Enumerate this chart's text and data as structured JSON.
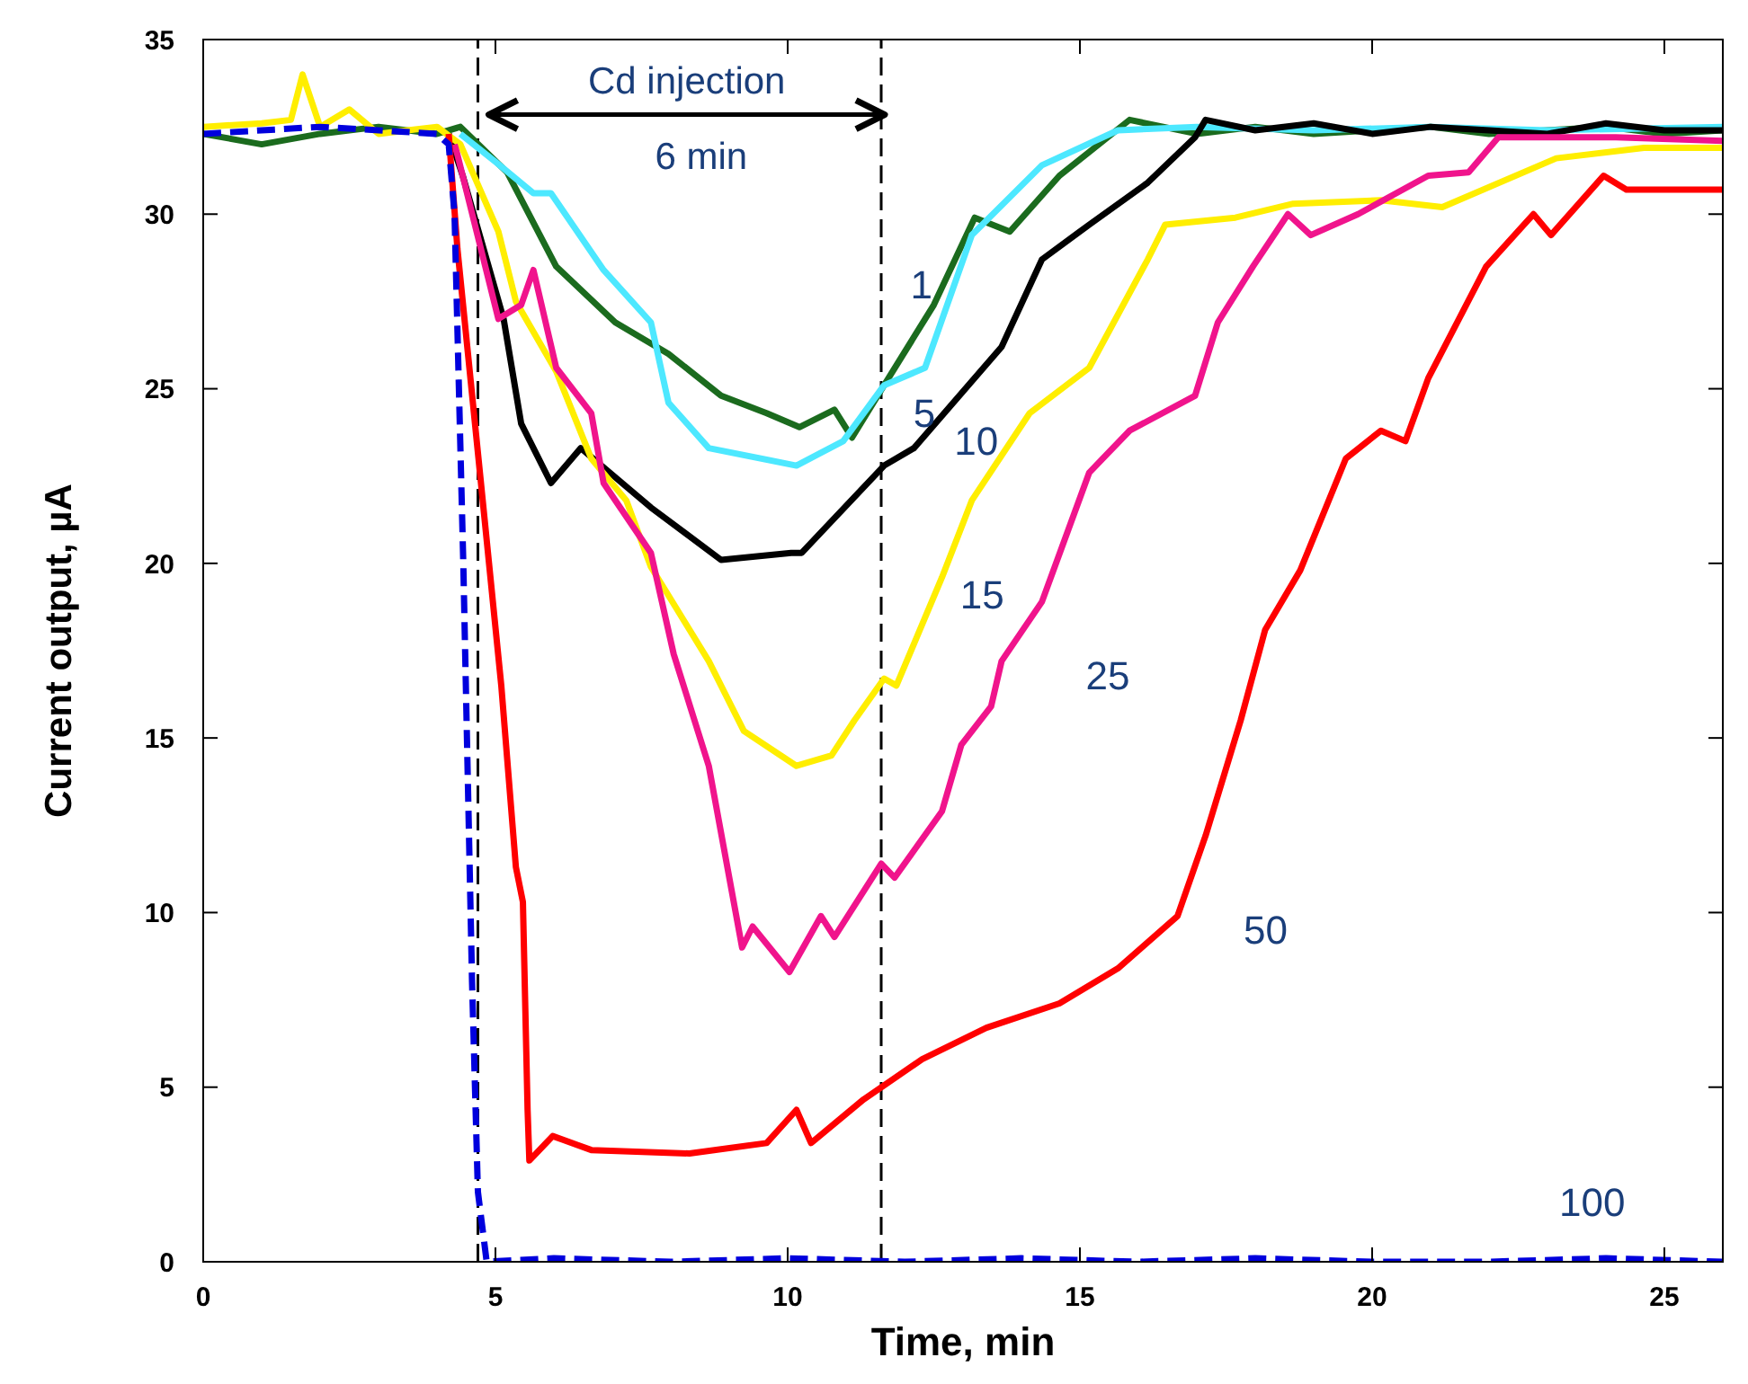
{
  "chart_data": {
    "type": "line",
    "xlabel": "Time, min",
    "ylabel": "Current output, µA",
    "xlim": [
      0,
      26
    ],
    "xticks": [
      0,
      5,
      10,
      15,
      20,
      25
    ],
    "ylim": [
      0,
      35
    ],
    "yticks": [
      0,
      5,
      10,
      15,
      20,
      25,
      30,
      35
    ],
    "marker": "none",
    "ref_lines": [
      {
        "axis": "x",
        "value": 4.7,
        "color": "#000000",
        "line_style": "dashed"
      },
      {
        "axis": "x",
        "value": 11.6,
        "color": "#000000",
        "line_style": "dashed"
      }
    ],
    "annotations": [
      "Cd injection",
      "6 min"
    ],
    "series": [
      {
        "name": "1",
        "color": "#1b6b1e",
        "line_style": "solid",
        "x": [
          0,
          1,
          2,
          3,
          4,
          4.4,
          5.2,
          6.04,
          7.05,
          7.96,
          8.86,
          9.64,
          10.2,
          10.8,
          11.1,
          11.65,
          12.5,
          13.2,
          13.8,
          14.65,
          15.85,
          17,
          18,
          19,
          20,
          21,
          22,
          23,
          24,
          25,
          26
        ],
        "values": [
          32.3,
          32.0,
          32.3,
          32.5,
          32.3,
          32.5,
          31.2,
          28.5,
          26.9,
          26.0,
          24.8,
          24.3,
          23.9,
          24.4,
          23.6,
          25.1,
          27.4,
          29.9,
          29.5,
          31.1,
          32.7,
          32.3,
          32.5,
          32.3,
          32.4,
          32.5,
          32.3,
          32.4,
          32.5,
          32.3,
          32.4
        ]
      },
      {
        "name": "5",
        "color": "#4de8ff",
        "line_style": "solid",
        "x": [
          4.4,
          5.0,
          5.65,
          5.95,
          6.85,
          7.66,
          7.96,
          8.65,
          10.15,
          10.95,
          11.65,
          12.35,
          13.15,
          14.35,
          15.65,
          17,
          19,
          21,
          23,
          26
        ],
        "values": [
          32.3,
          31.5,
          30.6,
          30.6,
          28.4,
          26.9,
          24.6,
          23.3,
          22.8,
          23.5,
          25.1,
          25.6,
          29.4,
          31.4,
          32.4,
          32.5,
          32.4,
          32.5,
          32.4,
          32.5
        ]
      },
      {
        "name": "10",
        "color": "#000000",
        "line_style": "solid",
        "x": [
          4.2,
          4.44,
          5.14,
          5.44,
          5.95,
          6.46,
          7.66,
          8.86,
          10.06,
          10.24,
          11.65,
          12.16,
          13.66,
          14.35,
          15.16,
          16.16,
          16.97,
          17.15,
          18,
          19,
          20,
          21,
          22,
          23,
          24,
          25,
          26
        ],
        "values": [
          32.3,
          31.1,
          27.0,
          24.0,
          22.3,
          23.3,
          21.6,
          20.1,
          20.3,
          20.3,
          22.8,
          23.3,
          26.2,
          28.7,
          29.7,
          30.9,
          32.2,
          32.7,
          32.4,
          32.6,
          32.3,
          32.5,
          32.4,
          32.3,
          32.6,
          32.4,
          32.4
        ]
      },
      {
        "name": "15",
        "color": "#ffee00",
        "line_style": "solid",
        "x": [
          0,
          1,
          1.5,
          1.7,
          2,
          2.5,
          3,
          3.5,
          4,
          4.4,
          5.05,
          5.35,
          6.04,
          6.64,
          7.24,
          7.66,
          8.65,
          9.25,
          10.15,
          10.75,
          11.14,
          11.65,
          11.86,
          12.64,
          13.15,
          14.14,
          15.16,
          16.16,
          16.46,
          17.66,
          18.65,
          20.15,
          21.2,
          23.15,
          24.65,
          26
        ],
        "values": [
          32.5,
          32.6,
          32.7,
          34.0,
          32.5,
          33.0,
          32.3,
          32.4,
          32.5,
          32.0,
          29.5,
          27.5,
          25.5,
          23.0,
          21.8,
          19.9,
          17.2,
          15.2,
          14.2,
          14.5,
          15.5,
          16.7,
          16.5,
          19.6,
          21.8,
          24.3,
          25.6,
          28.7,
          29.7,
          29.9,
          30.3,
          30.4,
          30.2,
          31.6,
          31.9,
          31.9
        ]
      },
      {
        "name": "25",
        "color": "#f0148c",
        "line_style": "solid",
        "x": [
          4.3,
          4.35,
          5.05,
          5.44,
          5.65,
          6.04,
          6.64,
          6.85,
          7.66,
          8.05,
          8.65,
          9.22,
          9.4,
          10.03,
          10.57,
          10.8,
          11.6,
          11.83,
          12.64,
          12.97,
          13.48,
          13.66,
          14.35,
          15.16,
          15.85,
          16.97,
          17.36,
          17.96,
          18.56,
          18.95,
          19.76,
          20.96,
          21.65,
          22.16,
          24.17,
          26
        ],
        "values": [
          32.0,
          31.7,
          27.0,
          27.4,
          28.4,
          25.6,
          24.3,
          22.3,
          20.3,
          17.4,
          14.2,
          9.0,
          9.6,
          8.3,
          9.9,
          9.3,
          11.4,
          11.0,
          12.9,
          14.8,
          15.9,
          17.2,
          18.9,
          22.6,
          23.8,
          24.8,
          26.9,
          28.5,
          30.0,
          29.4,
          30.0,
          31.1,
          31.2,
          32.2,
          32.2,
          32.1
        ]
      },
      {
        "name": "50",
        "color": "#ff0000",
        "line_style": "solid",
        "x": [
          4.2,
          4.35,
          4.74,
          5.1,
          5.35,
          5.47,
          5.55,
          5.58,
          5.98,
          6.64,
          8.32,
          9.64,
          10.15,
          10.4,
          11.3,
          12.3,
          13.4,
          14.65,
          15.65,
          16.67,
          17.15,
          17.75,
          18.17,
          18.77,
          19.55,
          20.15,
          20.57,
          20.96,
          21.95,
          22.76,
          23.06,
          23.96,
          24.35,
          26
        ],
        "values": [
          32.3,
          29.0,
          22.5,
          16.5,
          11.3,
          10.3,
          4.35,
          2.9,
          3.6,
          3.2,
          3.1,
          3.4,
          4.35,
          3.4,
          4.65,
          5.8,
          6.7,
          7.4,
          8.4,
          9.9,
          12.2,
          15.5,
          18.1,
          19.8,
          23.0,
          23.8,
          23.5,
          25.3,
          28.5,
          30.0,
          29.4,
          31.1,
          30.7,
          30.7
        ]
      },
      {
        "name": "100",
        "color": "#0000dd",
        "line_style": "dashed",
        "x": [
          0,
          1,
          2,
          3,
          4,
          4.2,
          4.3,
          4.45,
          4.6,
          4.7,
          4.85,
          6,
          8,
          10,
          12,
          14,
          16,
          18,
          20,
          22,
          24,
          26
        ],
        "values": [
          32.3,
          32.4,
          32.5,
          32.4,
          32.3,
          32.0,
          30,
          20,
          8,
          2,
          0,
          0.1,
          0,
          0.1,
          0,
          0.1,
          0,
          0.1,
          0,
          0,
          0.1,
          0
        ]
      }
    ]
  }
}
